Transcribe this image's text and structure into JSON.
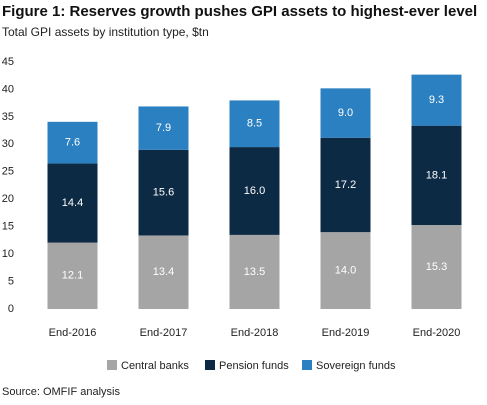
{
  "chart_data": {
    "type": "stacked_bar",
    "title": "Figure 1: Reserves growth pushes GPI assets to highest-ever level",
    "subtitle": "Total GPI assets by institution type, $tn",
    "source": "Source: OMFIF analysis",
    "categories": [
      "End-2016",
      "End-2017",
      "End-2018",
      "End-2019",
      "End-2020"
    ],
    "series": [
      {
        "name": "Central banks",
        "color": "#a5a5a5",
        "values": [
          12.1,
          13.4,
          13.5,
          14.0,
          15.3
        ],
        "value_labels": [
          "12.1",
          "13.4",
          "13.5",
          "14.0",
          "15.3"
        ]
      },
      {
        "name": "Pension funds",
        "color": "#0d2a45",
        "values": [
          14.4,
          15.6,
          16.0,
          17.2,
          18.1
        ],
        "value_labels": [
          "14.4",
          "15.6",
          "16.0",
          "17.2",
          "18.1"
        ]
      },
      {
        "name": "Sovereign funds",
        "color": "#2b80c1",
        "values": [
          7.6,
          7.9,
          8.5,
          9.0,
          9.3
        ],
        "value_labels": [
          "7.6",
          "7.9",
          "8.5",
          "9.0",
          "9.3"
        ]
      }
    ],
    "ylim": [
      0,
      45
    ],
    "yticks": [
      0,
      5,
      10,
      15,
      20,
      25,
      30,
      35,
      40,
      45
    ],
    "grid": false
  }
}
